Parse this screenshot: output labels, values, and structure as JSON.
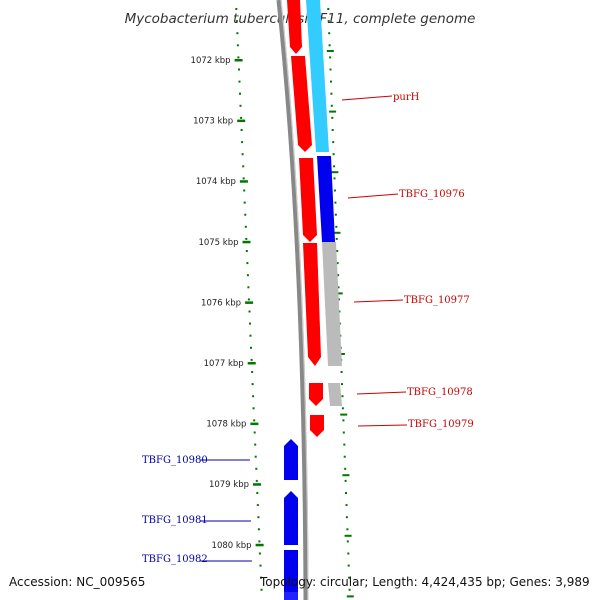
{
  "title": "Mycobacterium tuberculosis F11, complete genome",
  "accession": "Accession: NC_009565",
  "summary": "Topology: circular; Length: 4,424,435 bp; Genes: 3,989",
  "ruler": {
    "unit": "kbp",
    "ticks": [
      "1072 kbp",
      "1073 kbp",
      "1074 kbp",
      "1075 kbp",
      "1076 kbp",
      "1077 kbp",
      "1078 kbp",
      "1079 kbp",
      "1080 kbp"
    ]
  },
  "genes": {
    "forward_labels": [
      "purH",
      "TBFG_10976",
      "TBFG_10977",
      "TBFG_10978",
      "TBFG_10979"
    ],
    "reverse_labels": [
      "TBFG_10980",
      "TBFG_10981",
      "TBFG_10982"
    ]
  },
  "colors": {
    "forward_strand": "#ff0000",
    "reverse_strand": "#0000ee",
    "backbone": "#888888",
    "ruler": "#007700",
    "forward_label": "#cc0000",
    "reverse_label": "#0000aa",
    "cog_light_blue": "#33ccff",
    "cog_grey": "#bbbbbb"
  }
}
